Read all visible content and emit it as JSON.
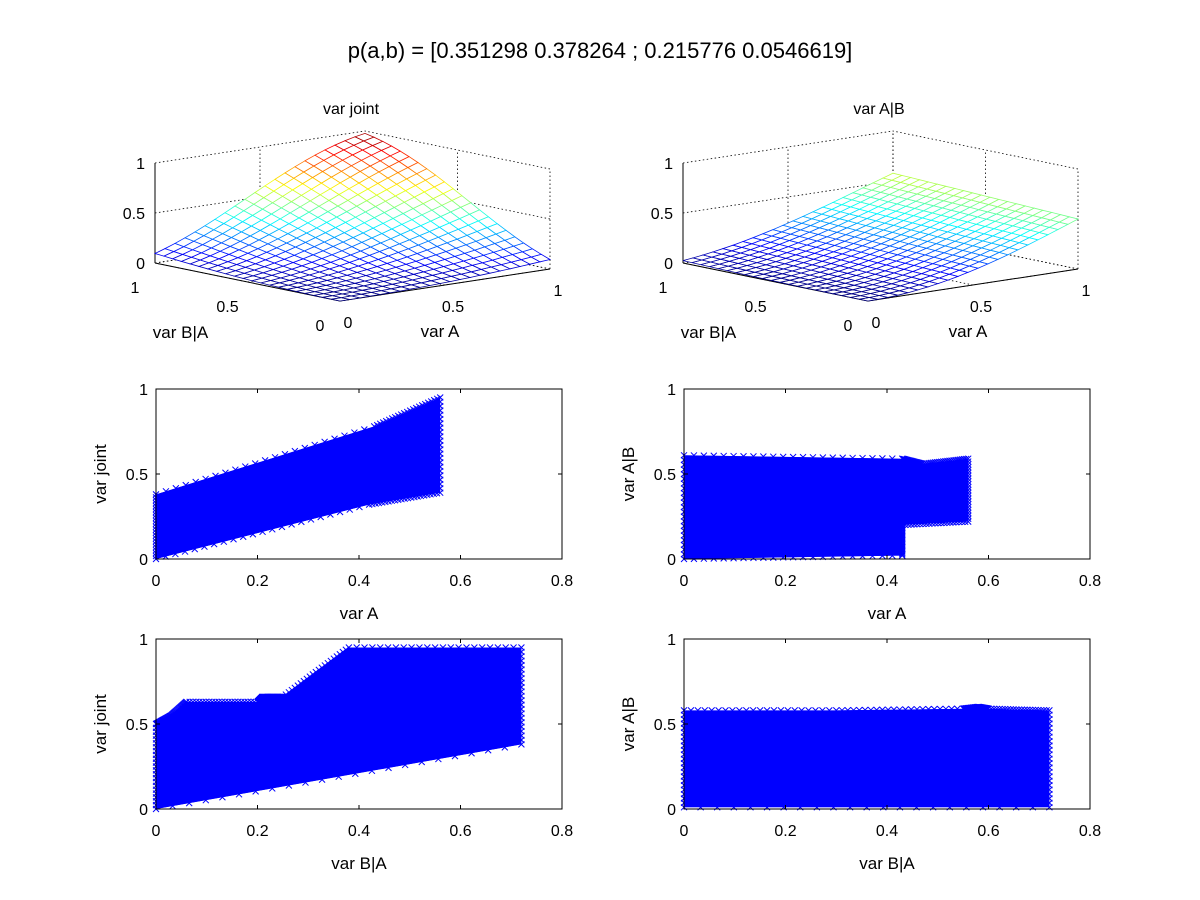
{
  "figure": {
    "suptitle": "p(a,b) = [0.351298 0.378264 ; 0.215776 0.0546619]"
  },
  "chart_data": [
    {
      "id": "surf1",
      "type": "surface",
      "title": "var joint",
      "xlabel": "var A",
      "ylabel": "var B|A",
      "zlabel": "",
      "x_ticks": [
        "0",
        "0.5",
        "1"
      ],
      "y_ticks": [
        "0",
        "0.5",
        "1"
      ],
      "z_ticks": [
        "0",
        "0.5",
        "1"
      ],
      "xlim": [
        0,
        1
      ],
      "ylim": [
        0,
        1
      ],
      "zlim": [
        0,
        1
      ],
      "grid": true,
      "colormap": "jet",
      "mesh_size": 21,
      "corner_values": {
        "a0_b0": 0.0,
        "a1_b0": 0.2,
        "a0_b1": 0.2,
        "a1_b1": 0.9
      }
    },
    {
      "id": "surf2",
      "type": "surface",
      "title": "var A|B",
      "xlabel": "var A",
      "ylabel": "var B|A",
      "zlabel": "",
      "x_ticks": [
        "0",
        "0.5",
        "1"
      ],
      "y_ticks": [
        "0",
        "0.5",
        "1"
      ],
      "z_ticks": [
        "0",
        "0.5",
        "1"
      ],
      "xlim": [
        0,
        1
      ],
      "ylim": [
        0,
        1
      ],
      "zlim": [
        0,
        1
      ],
      "grid": true,
      "colormap": "jet",
      "mesh_size": 21,
      "corner_values": {
        "a0_b0": 0.0,
        "a1_b0": 0.5,
        "a0_b1": 0.1,
        "a1_b1": 0.55
      }
    },
    {
      "id": "scatter1",
      "type": "scatter",
      "title": "",
      "xlabel": "var A",
      "ylabel": "var joint",
      "xlim": [
        0,
        0.8
      ],
      "ylim": [
        0,
        1
      ],
      "x_ticks": [
        0,
        0.2,
        0.4,
        0.6,
        0.8
      ],
      "y_ticks": [
        0,
        0.5,
        1
      ],
      "y_tick_labels": [
        "0",
        "0.5",
        "1"
      ],
      "color": "#0000ff",
      "marker": "x",
      "grid": false,
      "filled_region": [
        [
          0,
          0
        ],
        [
          0.42,
          0.32
        ],
        [
          0.56,
          0.39
        ],
        [
          0.56,
          0.95
        ],
        [
          0.43,
          0.78
        ],
        [
          0,
          0.38
        ]
      ]
    },
    {
      "id": "scatter2",
      "type": "scatter",
      "title": "",
      "xlabel": "var A",
      "ylabel": "var A|B",
      "xlim": [
        0,
        0.8
      ],
      "ylim": [
        0,
        1
      ],
      "x_ticks": [
        0,
        0.2,
        0.4,
        0.6,
        0.8
      ],
      "y_ticks": [
        0,
        0.5,
        1
      ],
      "y_tick_labels": [
        "0",
        "0.5",
        "1"
      ],
      "color": "#0000ff",
      "marker": "x",
      "grid": false,
      "filled_region": [
        [
          0,
          0
        ],
        [
          0.43,
          0.02
        ],
        [
          0.43,
          0.2
        ],
        [
          0.56,
          0.22
        ],
        [
          0.56,
          0.59
        ],
        [
          0.47,
          0.56
        ],
        [
          0.43,
          0.59
        ],
        [
          0,
          0.61
        ]
      ]
    },
    {
      "id": "scatter3",
      "type": "scatter",
      "title": "",
      "xlabel": "var B|A",
      "ylabel": "var joint",
      "xlim": [
        0,
        0.8
      ],
      "ylim": [
        0,
        1
      ],
      "x_ticks": [
        0,
        0.2,
        0.4,
        0.6,
        0.8
      ],
      "y_ticks": [
        0,
        0.5,
        1
      ],
      "y_tick_labels": [
        "0",
        "0.5",
        "1"
      ],
      "color": "#0000ff",
      "marker": "x",
      "grid": false,
      "filled_region": [
        [
          0,
          0
        ],
        [
          0.72,
          0.38
        ],
        [
          0.72,
          0.95
        ],
        [
          0.38,
          0.95
        ],
        [
          0.25,
          0.66
        ],
        [
          0.21,
          0.66
        ],
        [
          0.2,
          0.63
        ],
        [
          0.06,
          0.63
        ],
        [
          0.03,
          0.55
        ],
        [
          0,
          0.5
        ]
      ]
    },
    {
      "id": "scatter4",
      "type": "scatter",
      "title": "",
      "xlabel": "var B|A",
      "ylabel": "var A|B",
      "xlim": [
        0,
        0.8
      ],
      "ylim": [
        0,
        1
      ],
      "x_ticks": [
        0,
        0.2,
        0.4,
        0.6,
        0.8
      ],
      "y_ticks": [
        0,
        0.5,
        1
      ],
      "y_tick_labels": [
        "0",
        "0.5",
        "1"
      ],
      "color": "#0000ff",
      "marker": "x",
      "grid": false,
      "filled_region": [
        [
          0,
          0.01
        ],
        [
          0.72,
          0.01
        ],
        [
          0.72,
          0.58
        ],
        [
          0.6,
          0.59
        ],
        [
          0.58,
          0.6
        ],
        [
          0.55,
          0.59
        ],
        [
          0.3,
          0.58
        ],
        [
          0,
          0.58
        ]
      ]
    }
  ]
}
